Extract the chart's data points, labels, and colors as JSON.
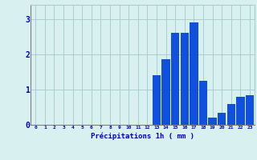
{
  "hours": [
    0,
    1,
    2,
    3,
    4,
    5,
    6,
    7,
    8,
    9,
    10,
    11,
    12,
    13,
    14,
    15,
    16,
    17,
    18,
    19,
    20,
    21,
    22,
    23
  ],
  "values": [
    0,
    0,
    0,
    0,
    0,
    0,
    0,
    0,
    0,
    0,
    0,
    0,
    0,
    1.4,
    1.85,
    2.6,
    2.6,
    2.9,
    1.25,
    0.2,
    0.35,
    0.6,
    0.8,
    0.85
  ],
  "bar_color": "#1050dd",
  "background_color": "#d8f0f0",
  "grid_color": "#aacece",
  "xlabel": "Précipitations 1h ( mm )",
  "xlabel_color": "#0000bb",
  "tick_color": "#0000bb",
  "ylim": [
    0,
    3.4
  ],
  "yticks": [
    0,
    1,
    2,
    3
  ],
  "xlim": [
    -0.5,
    23.5
  ],
  "bar_width": 0.9
}
